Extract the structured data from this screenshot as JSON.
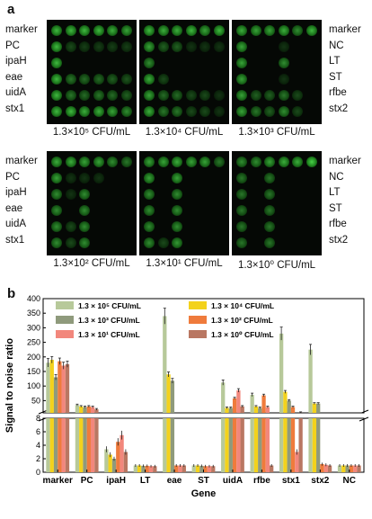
{
  "panel_a": {
    "letter": "a",
    "left_labels": [
      "marker",
      "PC",
      "ipaH",
      "eae",
      "uidA",
      "stx1"
    ],
    "right_labels": [
      "marker",
      "NC",
      "LT",
      "ST",
      "rfbe",
      "stx2"
    ],
    "colors": {
      "background": "#050805",
      "spot": "#3bd23b"
    },
    "blots": [
      {
        "caption": "1.3×10⁵ CFU/mL",
        "spots": [
          [
            0.8,
            0.8,
            0.8,
            0.8,
            0.75,
            0.7
          ],
          [
            0.8,
            0.3,
            0.25,
            0.25,
            0.25,
            0.25
          ],
          [
            0.8,
            0,
            0,
            0,
            0,
            0
          ],
          [
            0.8,
            0.5,
            0.45,
            0.45,
            0.4,
            0.35
          ],
          [
            0.8,
            0.5,
            0.45,
            0.5,
            0.45,
            0.4
          ],
          [
            0.8,
            0.8,
            0.75,
            0.75,
            0.7,
            0.6
          ]
        ]
      },
      {
        "caption": "1.3×10⁴ CFU/mL",
        "spots": [
          [
            0.8,
            0.75,
            0.75,
            0.8,
            0.7,
            0.8
          ],
          [
            0.7,
            0.4,
            0.4,
            0.2,
            0.2,
            0.2
          ],
          [
            0.6,
            0,
            0,
            0,
            0,
            0
          ],
          [
            0.75,
            0.3,
            0,
            0,
            0,
            0
          ],
          [
            0.7,
            0.45,
            0.45,
            0.3,
            0.3,
            0.2
          ],
          [
            0.75,
            0.5,
            0.5,
            0.3,
            0.3,
            0.2
          ]
        ]
      },
      {
        "caption": "1.3×10³ CFU/mL",
        "spots": [
          [
            0.75,
            0.7,
            0.7,
            0.75,
            0.6,
            0.8
          ],
          [
            0.7,
            0,
            0,
            0.2,
            0,
            0
          ],
          [
            0.7,
            0,
            0,
            0.6,
            0,
            0
          ],
          [
            0.7,
            0,
            0,
            0.2,
            0,
            0
          ],
          [
            0.7,
            0.4,
            0.4,
            0.5,
            0.3,
            0
          ],
          [
            0.7,
            0.5,
            0.4,
            0.6,
            0.3,
            0
          ]
        ]
      },
      {
        "caption": "1.3×10² CFU/mL",
        "spots": [
          [
            0.75,
            0.75,
            0.7,
            0.7,
            0.6,
            0.5
          ],
          [
            0.7,
            0.2,
            0.2,
            0.2,
            0,
            0
          ],
          [
            0.6,
            0.2,
            0.6,
            0,
            0,
            0
          ],
          [
            0.6,
            0,
            0.6,
            0,
            0,
            0
          ],
          [
            0.6,
            0.3,
            0.6,
            0,
            0,
            0
          ],
          [
            0.6,
            0.3,
            0.6,
            0,
            0,
            0
          ]
        ]
      },
      {
        "caption": "1.3×10¹ CFU/mL",
        "spots": [
          [
            0.7,
            0.7,
            0.75,
            0.7,
            0.7,
            0.5
          ],
          [
            0.7,
            0,
            0.7,
            0,
            0,
            0
          ],
          [
            0.6,
            0,
            0.6,
            0,
            0,
            0
          ],
          [
            0.6,
            0,
            0.6,
            0,
            0,
            0
          ],
          [
            0.6,
            0,
            0.6,
            0,
            0,
            0
          ],
          [
            0.6,
            0.3,
            0.65,
            0,
            0,
            0
          ]
        ]
      },
      {
        "caption": "1.3×10⁰ CFU/mL",
        "spots": [
          [
            0.6,
            0.6,
            0.7,
            0.75,
            0.75,
            0.9
          ],
          [
            0.5,
            0,
            0.5,
            0,
            0,
            0
          ],
          [
            0.5,
            0,
            0.5,
            0,
            0,
            0
          ],
          [
            0.5,
            0,
            0.5,
            0,
            0,
            0
          ],
          [
            0.5,
            0,
            0.5,
            0,
            0,
            0
          ],
          [
            0.5,
            0,
            0.5,
            0,
            0,
            0
          ]
        ]
      }
    ]
  },
  "panel_b": {
    "letter": "b",
    "chart_data": {
      "type": "bar",
      "ylabel": "Signal to noise ratio",
      "xlabel": "Gene",
      "categories": [
        "marker",
        "PC",
        "ipaH",
        "LT",
        "eae",
        "ST",
        "uidA",
        "rfbe",
        "stx1",
        "stx2",
        "NC"
      ],
      "broken_axis": {
        "lower_range": [
          0,
          8
        ],
        "upper_range": [
          8,
          400
        ]
      },
      "upper_ticks": [
        50,
        100,
        150,
        200,
        250,
        300,
        350,
        400
      ],
      "lower_ticks": [
        0,
        2,
        4,
        6,
        8
      ],
      "legend_position": "top",
      "series": [
        {
          "name": "1.3 × 10⁵ CFU/mL",
          "color": "#b7c99a",
          "values": [
            180,
            35,
            3.4,
            1.0,
            340,
            1.0,
            112,
            70,
            280,
            225,
            1.0
          ]
        },
        {
          "name": "1.3 × 10⁴ CFU/mL",
          "color": "#f3d21c",
          "values": [
            190,
            30,
            2.6,
            1.0,
            140,
            1.0,
            25,
            30,
            80,
            40,
            1.0
          ]
        },
        {
          "name": "1.3 × 10³ CFU/mL",
          "color": "#8f9a7c",
          "values": [
            130,
            28,
            2.0,
            0.95,
            118,
            0.95,
            25,
            25,
            50,
            40,
            1.0
          ]
        },
        {
          "name": "1.3 × 10² CFU/mL",
          "color": "#ef7b3c",
          "values": [
            185,
            30,
            4.5,
            0.95,
            1.0,
            0.9,
            58,
            68,
            28,
            1.2,
            1.0
          ]
        },
        {
          "name": "1.3 × 10¹ CFU/mL",
          "color": "#f2877c",
          "values": [
            170,
            28,
            5.5,
            0.9,
            1.0,
            0.9,
            85,
            28,
            3.0,
            1.1,
            1.0
          ]
        },
        {
          "name": "1.3 × 10⁰ CFU/mL",
          "color": "#b97762",
          "values": [
            175,
            20,
            3.0,
            0.9,
            1.0,
            0.9,
            30,
            1.0,
            8.4,
            1.0,
            1.0
          ]
        }
      ]
    }
  }
}
